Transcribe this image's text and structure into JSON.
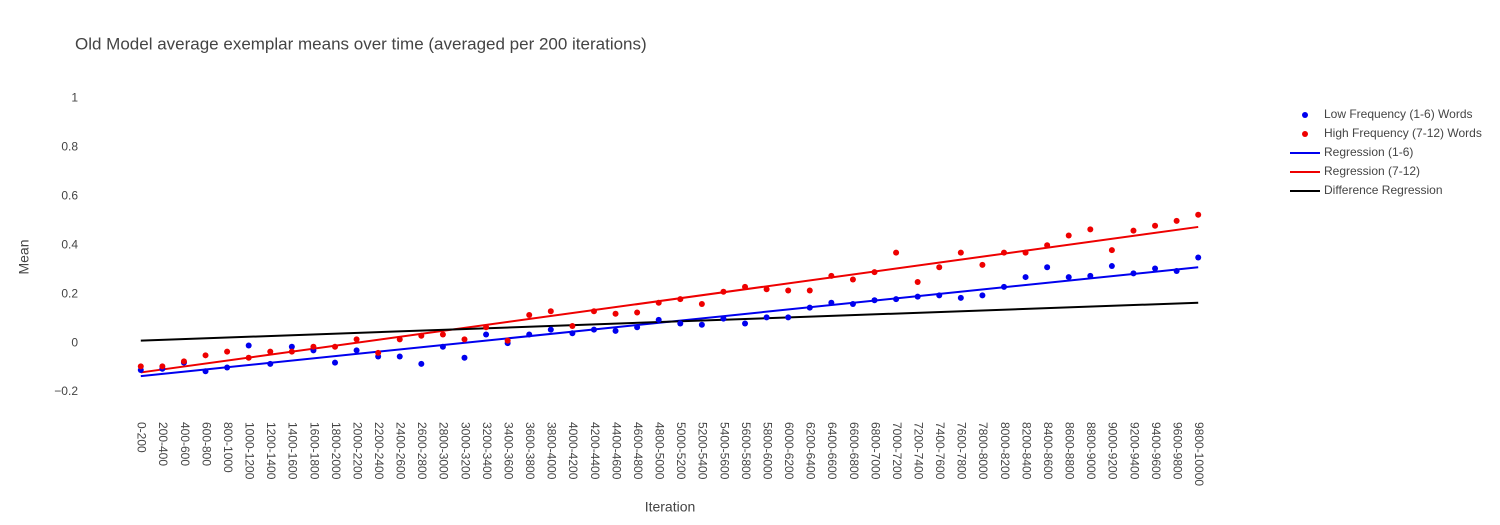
{
  "chart_data": {
    "type": "scatter",
    "title": "Old Model average exemplar means over time (averaged per 200 iterations)",
    "x_label": "Iteration",
    "y_label": "Mean",
    "categories": [
      "0-200",
      "200-400",
      "400-600",
      "600-800",
      "800-1000",
      "1000-1200",
      "1200-1400",
      "1400-1600",
      "1600-1800",
      "1800-2000",
      "2000-2200",
      "2200-2400",
      "2400-2600",
      "2600-2800",
      "2800-3000",
      "3000-3200",
      "3200-3400",
      "3400-3600",
      "3600-3800",
      "3800-4000",
      "4000-4200",
      "4200-4400",
      "4400-4600",
      "4600-4800",
      "4800-5000",
      "5000-5200",
      "5200-5400",
      "5400-5600",
      "5600-5800",
      "5800-6000",
      "6000-6200",
      "6200-6400",
      "6400-6600",
      "6600-6800",
      "6800-7000",
      "7000-7200",
      "7200-7400",
      "7400-7600",
      "7600-7800",
      "7800-8000",
      "8000-8200",
      "8200-8400",
      "8400-8600",
      "8600-8800",
      "8800-9000",
      "9000-9200",
      "9200-9400",
      "9400-9600",
      "9600-9800",
      "9800-10000"
    ],
    "series": [
      {
        "name": "Low Frequency (1-6) Words",
        "mode": "markers",
        "color": "#0000ee",
        "values": [
          -0.11,
          -0.105,
          -0.08,
          -0.115,
          -0.1,
          -0.01,
          -0.085,
          -0.015,
          -0.03,
          -0.08,
          -0.03,
          -0.055,
          -0.055,
          -0.085,
          -0.015,
          -0.06,
          0.035,
          0.0,
          0.035,
          0.055,
          0.04,
          0.055,
          0.05,
          0.065,
          0.095,
          0.08,
          0.075,
          0.1,
          0.08,
          0.105,
          0.105,
          0.145,
          0.165,
          0.16,
          0.175,
          0.18,
          0.19,
          0.195,
          0.185,
          0.195,
          0.23,
          0.27,
          0.31,
          0.27,
          0.275,
          0.315,
          0.285,
          0.305,
          0.295,
          0.35
        ]
      },
      {
        "name": "High Frequency (7-12) Words",
        "mode": "markers",
        "color": "#ee0000",
        "values": [
          -0.095,
          -0.095,
          -0.075,
          -0.05,
          -0.035,
          -0.06,
          -0.035,
          -0.035,
          -0.015,
          -0.015,
          0.015,
          -0.04,
          0.015,
          0.03,
          0.035,
          0.015,
          0.065,
          0.01,
          0.115,
          0.13,
          0.07,
          0.13,
          0.12,
          0.125,
          0.165,
          0.18,
          0.16,
          0.21,
          0.23,
          0.22,
          0.215,
          0.215,
          0.275,
          0.26,
          0.29,
          0.37,
          0.25,
          0.31,
          0.37,
          0.32,
          0.37,
          0.37,
          0.4,
          0.44,
          0.465,
          0.38,
          0.46,
          0.48,
          0.5,
          0.525
        ]
      },
      {
        "name": "Regression (1-6)",
        "mode": "lines",
        "color": "#0000ee",
        "x": [
          "0-200",
          "9800-10000"
        ],
        "values": [
          -0.135,
          0.31
        ]
      },
      {
        "name": "Regression (7-12)",
        "mode": "lines",
        "color": "#ee0000",
        "x": [
          "0-200",
          "9800-10000"
        ],
        "values": [
          -0.12,
          0.475
        ]
      },
      {
        "name": "Difference Regression",
        "mode": "lines",
        "color": "#000000",
        "x": [
          "0-200",
          "9800-10000"
        ],
        "values": [
          0.01,
          0.165
        ]
      }
    ],
    "ylim": [
      -0.29,
      1.08
    ],
    "yticks": [
      {
        "value": -0.2,
        "label": "−0.2"
      },
      0,
      0.2,
      0.4,
      0.6,
      0.8,
      1
    ],
    "grid": false,
    "legend": "right"
  }
}
